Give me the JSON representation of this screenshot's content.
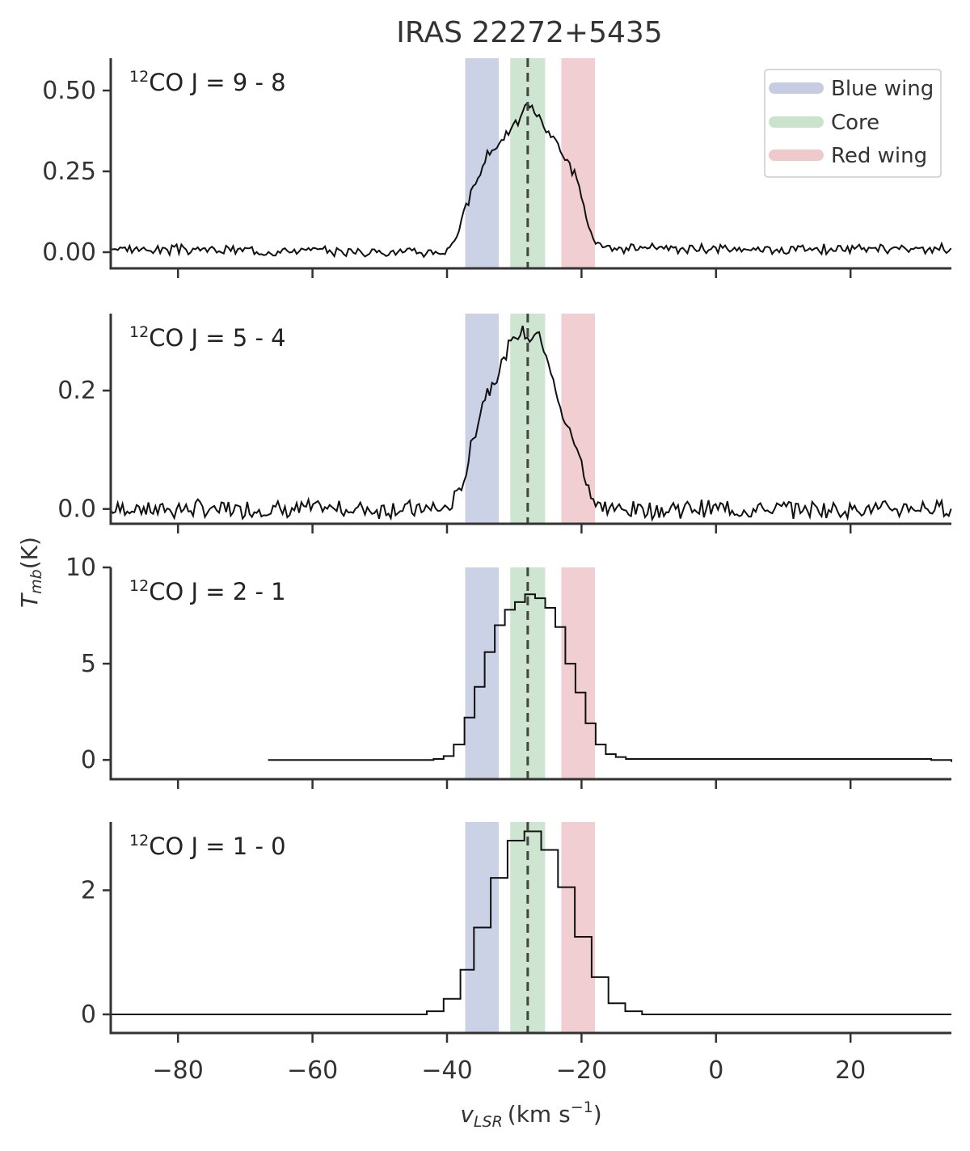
{
  "chart_data": {
    "type": "line",
    "title": "IRAS 22272+5435",
    "xlabel_main": "v",
    "xlabel_sub": "LSR",
    "xlabel_unit": "(km s",
    "xlabel_exp": "−1",
    "xlabel_close": ")",
    "ylabel_main": "T",
    "ylabel_sub": "mb",
    "ylabel_unit": "(K)",
    "xlim": [
      -90,
      35
    ],
    "xticks": [
      -80,
      -60,
      -40,
      -20,
      0,
      20
    ],
    "xtick_labels": [
      "−80",
      "−60",
      "−40",
      "−20",
      "0",
      "20"
    ],
    "center_velocity": -28,
    "bands": [
      {
        "name": "Blue wing",
        "range": [
          -37.3,
          -32.3
        ],
        "color": "#c6cde3"
      },
      {
        "name": "Core",
        "range": [
          -30.6,
          -25.4
        ],
        "color": "#c9e3cc"
      },
      {
        "name": "Red wing",
        "range": [
          -23.0,
          -18.0
        ],
        "color": "#efc9cc"
      }
    ],
    "panels": [
      {
        "label_sup": "12",
        "label": "CO J = 9 - 8",
        "ylim": [
          -0.05,
          0.6
        ],
        "yticks": [
          0,
          0.25,
          0.5
        ],
        "ytick_labels": [
          "0.00",
          "0.25",
          "0.50"
        ],
        "style": "line",
        "noise": 0.012,
        "seed": 3,
        "velocities": [
          -90,
          -40,
          -38,
          -37,
          -35,
          -34,
          -33,
          -32,
          -30,
          -29,
          -28,
          -27,
          -26,
          -24,
          -23,
          -22,
          -21,
          -20,
          -19,
          -18,
          -16,
          35
        ],
        "values": [
          0.01,
          0.0,
          0.08,
          0.15,
          0.25,
          0.3,
          0.32,
          0.35,
          0.39,
          0.41,
          0.47,
          0.44,
          0.4,
          0.35,
          0.31,
          0.28,
          0.24,
          0.18,
          0.08,
          0.02,
          0.01,
          0.01
        ]
      },
      {
        "label_sup": "12",
        "label": "CO J = 5 - 4",
        "ylim": [
          -0.025,
          0.33
        ],
        "yticks": [
          0,
          0.2
        ],
        "ytick_labels": [
          "0.0",
          "0.2"
        ],
        "style": "line",
        "noise": 0.012,
        "seed": 7,
        "velocities": [
          -90,
          -40,
          -38,
          -36,
          -35,
          -34,
          -32,
          -30,
          -29,
          -28,
          -27,
          -26,
          -25,
          -24,
          -23,
          -22,
          -20,
          -19,
          -18,
          -17,
          35
        ],
        "values": [
          0.0,
          0.0,
          0.03,
          0.12,
          0.17,
          0.2,
          0.24,
          0.29,
          0.3,
          0.29,
          0.3,
          0.29,
          0.26,
          0.2,
          0.16,
          0.14,
          0.08,
          0.04,
          0.01,
          0.0,
          0.0
        ]
      },
      {
        "label_sup": "12",
        "label": "CO J = 2 - 1",
        "ylim": [
          -1.0,
          10.0
        ],
        "yticks": [
          0,
          5,
          10
        ],
        "ytick_labels": [
          "0",
          "5",
          "10"
        ],
        "style": "step",
        "velocities": [
          -66.6,
          -42,
          -40.5,
          -39,
          -37.4,
          -35.9,
          -34.4,
          -32.9,
          -31.4,
          -29.9,
          -28.4,
          -26.9,
          -25.4,
          -23.9,
          -22.4,
          -20.9,
          -19.4,
          -17.9,
          -16.4,
          -14.9,
          -13.4,
          32,
          35
        ],
        "values": [
          0.0,
          0.05,
          0.2,
          0.8,
          2.2,
          3.8,
          5.6,
          7.0,
          7.8,
          8.2,
          8.6,
          8.4,
          7.9,
          6.9,
          5.0,
          3.5,
          1.9,
          0.8,
          0.3,
          0.15,
          0.05,
          0.0,
          -0.1
        ]
      },
      {
        "label_sup": "12",
        "label": "CO J = 1 - 0",
        "ylim": [
          -0.3,
          3.1
        ],
        "yticks": [
          0,
          2
        ],
        "ytick_labels": [
          "0",
          "2"
        ],
        "style": "step",
        "velocities": [
          -90,
          -45,
          -43,
          -40.5,
          -38,
          -36,
          -33.5,
          -31,
          -28.5,
          -26,
          -23.5,
          -21,
          -18.5,
          -16,
          -13.5,
          -11,
          35
        ],
        "values": [
          0.0,
          0.0,
          0.05,
          0.25,
          0.72,
          1.4,
          2.2,
          2.8,
          2.95,
          2.65,
          2.05,
          1.25,
          0.6,
          0.18,
          0.05,
          0.0,
          0.0
        ]
      }
    ],
    "legend": [
      "Blue wing",
      "Core",
      "Red wing"
    ],
    "legend_position": "top-right",
    "line_color": "#111111",
    "center_line_color": "#444444"
  }
}
